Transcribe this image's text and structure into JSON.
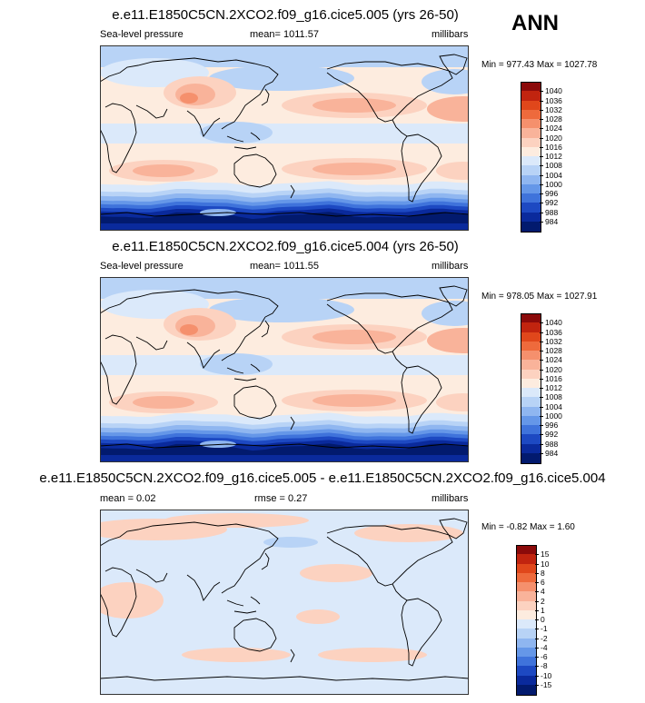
{
  "season": "ANN",
  "panels": [
    {
      "title": "e.e11.E1850C5CN.2XCO2.f09_g16.cice5.005 (yrs 26-50)",
      "left_label": "Sea-level pressure",
      "mid_label": "mean= 1011.57",
      "right_label": "millibars",
      "minmax": "Min = 977.43 Max = 1027.78",
      "kind": "abs"
    },
    {
      "title": "e.e11.E1850C5CN.2XCO2.f09_g16.cice5.004 (yrs 26-50)",
      "left_label": "Sea-level pressure",
      "mid_label": "mean= 1011.55",
      "right_label": "millibars",
      "minmax": "Min = 978.05 Max = 1027.91",
      "kind": "abs"
    },
    {
      "title": "e.e11.E1850C5CN.2XCO2.f09_g16.cice5.005 - e.e11.E1850C5CN.2XCO2.f09_g16.cice5.004",
      "left_label": "mean =  0.02",
      "mid_label": "rmse =  0.27",
      "right_label": "millibars",
      "minmax": "Min = -0.82 Max =   1.60",
      "kind": "diff"
    }
  ],
  "colorbar_abs": {
    "labels": [
      "1040",
      "1036",
      "1032",
      "1028",
      "1024",
      "1020",
      "1016",
      "1012",
      "1008",
      "1004",
      "1000",
      "996",
      "992",
      "988",
      "984"
    ],
    "colors": [
      "#8b0a0a",
      "#c1240f",
      "#e0471b",
      "#ee6a3c",
      "#f5906d",
      "#f9b39a",
      "#fcd2c0",
      "#fdecdf",
      "#dbe9fa",
      "#b8d3f6",
      "#8fb6f0",
      "#6597e8",
      "#3f73db",
      "#1d49c2",
      "#0a2a9c",
      "#021a6e"
    ]
  },
  "colorbar_diff": {
    "labels": [
      "15",
      "10",
      "8",
      "6",
      "4",
      "2",
      "1",
      "0",
      "-1",
      "-2",
      "-4",
      "-6",
      "-8",
      "-10",
      "-15"
    ],
    "colors": [
      "#8b0a0a",
      "#c1240f",
      "#e0471b",
      "#ee6a3c",
      "#f5906d",
      "#f9b39a",
      "#fcd2c0",
      "#fdecdf",
      "#dbe9fa",
      "#b8d3f6",
      "#8fb6f0",
      "#6597e8",
      "#3f73db",
      "#1d49c2",
      "#0a2a9c",
      "#021a6e"
    ]
  },
  "map_colors": {
    "low3": "#021a6e",
    "low2": "#0a2a9c",
    "low1": "#1d49c2",
    "lowa": "#3f73db",
    "lowb": "#6597e8",
    "lowc": "#8fb6f0",
    "lowd": "#b8d3f6",
    "lowe": "#dbe9fa",
    "neutral": "#fdecdf",
    "h1": "#fcd2c0",
    "h2": "#f9b39a",
    "h3": "#f5906d",
    "h4": "#ee6a3c",
    "coast": "#000000"
  }
}
